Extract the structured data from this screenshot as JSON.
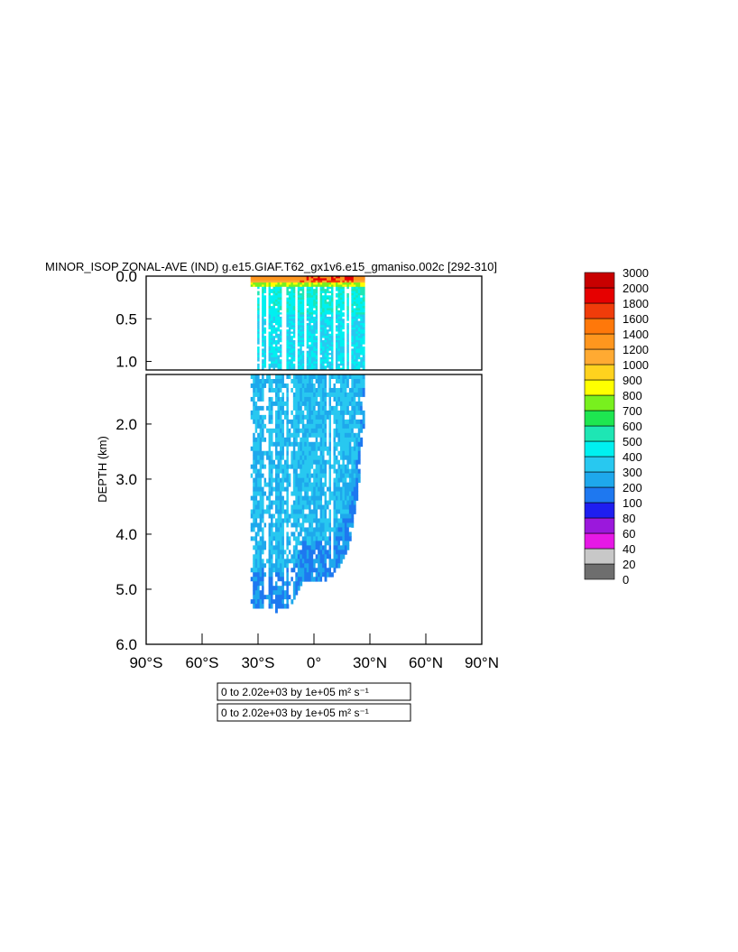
{
  "title": "MINOR_ISOP ZONAL-AVE (IND) g.e15.GIAF.T62_gx1v6.e15_gmaniso.002c  [292-310]",
  "colors": {
    "background": "#ffffff",
    "frame": "#000000",
    "bands": [
      "#6e6e6e",
      "#c8c8c8",
      "#e619e6",
      "#9b18dc",
      "#1e1ef0",
      "#1e78f0",
      "#1ea8ec",
      "#28c8f0",
      "#00f0f0",
      "#1ee6b4",
      "#1ee650",
      "#78f01e",
      "#ffff00",
      "#ffd21e",
      "#ffaa32",
      "#ff961e",
      "#ff780a",
      "#f03c0a",
      "#e60000",
      "#c80000"
    ]
  },
  "info_boxes": [
    "0 to 2.02e+03 by 1e+05 m² s⁻¹",
    "0 to 2.02e+03 by 1e+05 m² s⁻¹"
  ],
  "chart_data": {
    "type": "heatmap",
    "title": "MINOR_ISOP ZONAL-AVE (IND) g.e15.GIAF.T62_gx1v6.e15_gmaniso.002c  [292-310]",
    "xlabel": "",
    "ylabel": "DEPTH (km)",
    "x_ticks": [
      "90°S",
      "60°S",
      "30°S",
      "0°",
      "30°N",
      "60°N",
      "90°N"
    ],
    "x_tick_values": [
      -90,
      -60,
      -30,
      0,
      30,
      60,
      90
    ],
    "upper_panel": {
      "ylim": [
        0.0,
        1.1
      ],
      "y_ticks": [
        "0.0",
        "0.5",
        "1.0"
      ],
      "y_tick_values": [
        0.0,
        0.5,
        1.0
      ]
    },
    "lower_panel": {
      "ylim": [
        1.1,
        6.0
      ],
      "y_ticks": [
        "2.0",
        "3.0",
        "4.0",
        "5.0",
        "6.0"
      ],
      "y_tick_values": [
        2.0,
        3.0,
        4.0,
        5.0,
        6.0
      ]
    },
    "xlim": [
      -90,
      90
    ],
    "colorbar": {
      "levels": [
        "0",
        "20",
        "40",
        "60",
        "80",
        "100",
        "200",
        "300",
        "400",
        "500",
        "600",
        "700",
        "800",
        "900",
        "1000",
        "1200",
        "1400",
        "1600",
        "1800",
        "2000",
        "3000"
      ]
    },
    "data_extent": {
      "lat_min": -34,
      "lat_max": 26,
      "max_depth_km_by_lat": [
        [
          -34,
          5.35
        ],
        [
          -30,
          5.3
        ],
        [
          -26,
          5.3
        ],
        [
          -20,
          5.35
        ],
        [
          -15,
          5.3
        ],
        [
          -10,
          5.15
        ],
        [
          -6,
          4.8
        ],
        [
          -2,
          4.85
        ],
        [
          2,
          4.8
        ],
        [
          6,
          4.8
        ],
        [
          10,
          4.7
        ],
        [
          14,
          4.5
        ],
        [
          18,
          4.3
        ],
        [
          21,
          3.8
        ],
        [
          24,
          3.1
        ],
        [
          26,
          2.0
        ]
      ]
    },
    "annotations": {
      "surface_max_region": "red/orange band along 0-0.1 km depth between about 5°S and 25°N",
      "deep_dominant_range": "300-400 throughout interior"
    }
  }
}
